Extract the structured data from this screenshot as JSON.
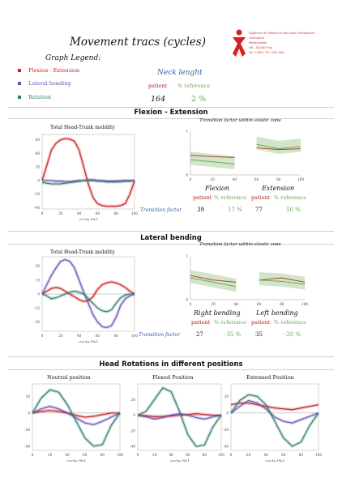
{
  "title": "Movement tracs (cycles)",
  "logo": {
    "lines": [
      "Diplômes de Médecine Manuelle Ostéopathie",
      "Ordinateur",
      "Rééducation",
      "HR - 52000 Pula",
      "Tel. +385 / 52 / 200 000"
    ]
  },
  "legend": {
    "heading": "Graph Legend:",
    "items": [
      {
        "label": "Flexion - Extension",
        "color": "#c81e1e"
      },
      {
        "label": "Lateral bending",
        "color": "#6a4fb3"
      },
      {
        "label": "Rotation",
        "color": "#2e7d6b"
      }
    ]
  },
  "neck": {
    "heading": "Neck lenght",
    "patient_label": "patient",
    "reference_label": "% reference",
    "patient_value": "164",
    "reference_value": "2 %"
  },
  "sections": {
    "flexion": {
      "title": "Flexion - Extension",
      "mobility_title": "Total Head-Trunk mobility",
      "transition_title": "Transition factor within elastic zone",
      "xlabel": "cycle [%]",
      "col1_label": "Flexion",
      "col2_label": "Extension",
      "patient_label": "patient",
      "reference_label": "% reference",
      "factor_label": "Transition factor",
      "col1_patient": "39",
      "col1_ref": "17 %",
      "col2_patient": "77",
      "col2_ref": "50 %"
    },
    "lateral": {
      "title": "Lateral bending",
      "mobility_title": "Total Head-Trunk mobility",
      "transition_title": "Transition factor within elastic zone",
      "xlabel": "cycle [%]",
      "col1_label": "Right bending",
      "col2_label": "Left bending",
      "patient_label": "patient",
      "reference_label": "% reference",
      "factor_label": "Transition factor",
      "col1_patient": "27",
      "col1_ref": "-35 %",
      "col2_patient": "35",
      "col2_ref": "-20 %"
    },
    "rotation": {
      "title": "Head Rotations in different positions",
      "panels": [
        {
          "title": "Neutral position",
          "xlabel": "cycle [%]"
        },
        {
          "title": "Flexed Position",
          "xlabel": "cycle [%]"
        },
        {
          "title": "Extensed Position",
          "xlabel": "cycle [%]"
        }
      ]
    }
  },
  "chart_data": [
    {
      "type": "line",
      "title": "Total Head-Trunk mobility",
      "xlabel": "cycle [%]",
      "x": [
        0,
        5,
        10,
        15,
        20,
        25,
        30,
        35,
        40,
        45,
        50,
        55,
        60,
        65,
        70,
        75,
        80,
        85,
        90,
        95,
        100
      ],
      "x_ticks": [
        0,
        20,
        40,
        60,
        80,
        100
      ],
      "y_ticks": [
        -40,
        -20,
        0,
        20,
        40,
        60
      ],
      "ylim": [
        -42,
        68
      ],
      "series": [
        {
          "color": "#c81e1e",
          "values": [
            0,
            22,
            45,
            55,
            60,
            62,
            61,
            58,
            45,
            20,
            -5,
            -25,
            -34,
            -37,
            -38,
            -38,
            -38,
            -37,
            -34,
            -20,
            0
          ]
        },
        {
          "color": "#6a4fb3",
          "values": [
            0,
            0,
            0,
            -1,
            -1,
            -2,
            -2,
            -1,
            0,
            0,
            1,
            1,
            0,
            0,
            -1,
            -1,
            -1,
            0,
            0,
            0,
            0
          ]
        },
        {
          "color": "#2e7d6b",
          "values": [
            -3,
            -4,
            -5,
            -5,
            -5,
            -4,
            -3,
            -2,
            -1,
            0,
            0,
            0,
            -1,
            -1,
            -2,
            -2,
            -2,
            -2,
            -1,
            -1,
            0
          ]
        }
      ]
    },
    {
      "type": "line",
      "title": "Transition factor within elastic zone",
      "x": [
        0,
        20,
        40,
        60,
        80,
        100
      ],
      "x_ticks": [
        0,
        20,
        40,
        60,
        80,
        100
      ],
      "y_ticks": [
        0,
        1
      ],
      "ylim": [
        0,
        1
      ],
      "series": [
        {
          "color": "#c81e1e",
          "values": [
            0.45,
            0.42,
            0.4,
            0.62,
            0.58,
            0.6
          ]
        },
        {
          "color": "#6aa84f",
          "values": [
            0.35,
            0.3,
            0.25,
            0.7,
            0.6,
            0.65
          ]
        }
      ]
    },
    {
      "type": "line",
      "title": "Total Head-Trunk mobility",
      "xlabel": "cycle [%]",
      "x": [
        0,
        5,
        10,
        15,
        20,
        25,
        30,
        35,
        40,
        45,
        50,
        55,
        60,
        65,
        70,
        75,
        80,
        85,
        90,
        95,
        100
      ],
      "x_ticks": [
        0,
        20,
        40,
        60,
        80,
        100
      ],
      "y_ticks": [
        -30,
        -15,
        0,
        15,
        30
      ],
      "ylim": [
        -40,
        40
      ],
      "series": [
        {
          "color": "#c81e1e",
          "values": [
            0,
            3,
            6,
            7,
            6,
            3,
            0,
            -3,
            -6,
            -8,
            -7,
            -3,
            5,
            10,
            12,
            13,
            12,
            10,
            7,
            3,
            0
          ]
        },
        {
          "color": "#6a4fb3",
          "values": [
            0,
            10,
            20,
            28,
            35,
            37,
            35,
            28,
            15,
            2,
            -10,
            -22,
            -30,
            -35,
            -36,
            -34,
            -25,
            -12,
            -5,
            -2,
            0
          ]
        },
        {
          "color": "#2e7d6b",
          "values": [
            0,
            -2,
            -5,
            -4,
            -2,
            0,
            2,
            3,
            2,
            0,
            -5,
            -10,
            -15,
            -18,
            -19,
            -17,
            -10,
            -4,
            -1,
            0,
            0
          ]
        }
      ]
    },
    {
      "type": "line",
      "title": "Transition factor within elastic zone",
      "x": [
        0,
        20,
        40,
        60,
        80,
        100
      ],
      "x_ticks": [
        0,
        20,
        40,
        60,
        80,
        100
      ],
      "y_ticks": [
        0,
        1
      ],
      "ylim": [
        0,
        1
      ],
      "series": [
        {
          "color": "#c81e1e",
          "values": [
            0.55,
            0.45,
            0.4,
            0.45,
            0.5,
            0.4
          ]
        },
        {
          "color": "#6aa84f",
          "values": [
            0.5,
            0.4,
            0.3,
            0.45,
            0.42,
            0.35
          ]
        }
      ]
    },
    {
      "type": "line",
      "title": "Neutral position",
      "xlabel": "cycle [%]",
      "x": [
        0,
        10,
        20,
        30,
        40,
        50,
        60,
        70,
        80,
        90,
        100
      ],
      "x_ticks": [
        0,
        20,
        40,
        60,
        80,
        100
      ],
      "y_ticks": [
        -40,
        -20,
        0,
        20
      ],
      "ylim": [
        -45,
        35
      ],
      "series": [
        {
          "color": "#c81e1e",
          "values": [
            0,
            2,
            3,
            2,
            0,
            -3,
            -5,
            -4,
            -2,
            0,
            0
          ]
        },
        {
          "color": "#6a4fb3",
          "values": [
            0,
            5,
            8,
            5,
            0,
            -6,
            -12,
            -14,
            -10,
            -5,
            0
          ]
        },
        {
          "color": "#2e7d6b",
          "values": [
            0,
            18,
            28,
            25,
            10,
            -10,
            -30,
            -40,
            -38,
            -15,
            0
          ]
        }
      ]
    },
    {
      "type": "line",
      "title": "Flexed Position",
      "xlabel": "cycle [%]",
      "x": [
        0,
        10,
        20,
        30,
        40,
        50,
        60,
        70,
        80,
        90,
        100
      ],
      "x_ticks": [
        0,
        20,
        40,
        60,
        80,
        100
      ],
      "y_ticks": [
        -40,
        -20,
        0,
        20
      ],
      "ylim": [
        -45,
        40
      ],
      "series": [
        {
          "color": "#c81e1e",
          "values": [
            0,
            -1,
            -2,
            -2,
            -1,
            0,
            1,
            2,
            1,
            0,
            0
          ]
        },
        {
          "color": "#6a4fb3",
          "values": [
            0,
            -2,
            -5,
            -3,
            0,
            2,
            0,
            -3,
            -5,
            -2,
            0
          ]
        },
        {
          "color": "#2e7d6b",
          "values": [
            0,
            5,
            20,
            35,
            30,
            5,
            -25,
            -40,
            -38,
            -15,
            0
          ]
        }
      ]
    },
    {
      "type": "line",
      "title": "Extensed Position",
      "xlabel": "cycle [%]",
      "x": [
        0,
        10,
        20,
        30,
        40,
        50,
        60,
        70,
        80,
        90,
        100
      ],
      "x_ticks": [
        0,
        20,
        40,
        60,
        80,
        100
      ],
      "y_ticks": [
        -40,
        -20,
        0,
        20
      ],
      "ylim": [
        -45,
        35
      ],
      "series": [
        {
          "color": "#c81e1e",
          "values": [
            10,
            12,
            12,
            10,
            8,
            6,
            5,
            4,
            6,
            8,
            10
          ]
        },
        {
          "color": "#6a4fb3",
          "values": [
            0,
            8,
            15,
            12,
            5,
            -5,
            -10,
            -12,
            -8,
            -4,
            0
          ]
        },
        {
          "color": "#2e7d6b",
          "values": [
            0,
            15,
            22,
            20,
            10,
            -10,
            -30,
            -40,
            -35,
            -15,
            0
          ]
        }
      ]
    }
  ]
}
